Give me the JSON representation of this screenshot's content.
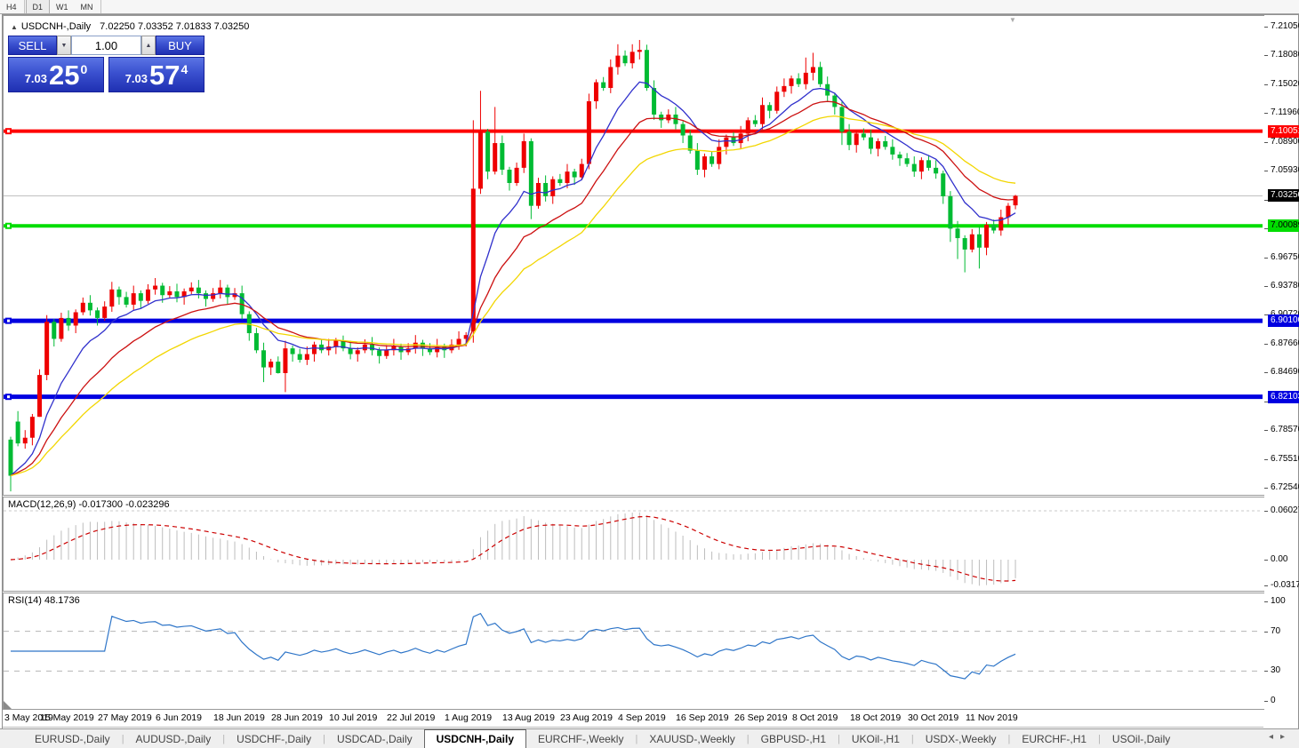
{
  "toolbar": {
    "timeframes": [
      "H4",
      "D1",
      "W1",
      "MN"
    ],
    "active": "D1"
  },
  "header": {
    "collapse_icon": "▲",
    "symbol_title": "USDCNH-,Daily",
    "ohlc_text": "7.02250 7.03352 7.01833 7.03250"
  },
  "trade_panel": {
    "sell_label": "SELL",
    "buy_label": "BUY",
    "volume": "1.00",
    "spin_down_icon": "▼",
    "spin_up_icon": "▲",
    "sell_price": {
      "small": "7.03",
      "big": "25",
      "sup": "0"
    },
    "buy_price": {
      "small": "7.03",
      "big": "57",
      "sup": "4"
    }
  },
  "price_axis": {
    "ticks": [
      "7.21050",
      "7.18080",
      "7.15020",
      "7.11960",
      "7.08900",
      "7.05930",
      "7.02870",
      "6.99810",
      "6.96750",
      "6.93780",
      "6.90720",
      "6.87660",
      "6.84690",
      "6.81630",
      "6.78570",
      "6.75510",
      "6.72540"
    ],
    "boxes": [
      {
        "text": "7.10051",
        "value": 7.10051,
        "bg": "#ff0000",
        "fg": "#ffffff"
      },
      {
        "text": "7.03250",
        "value": 7.0325,
        "bg": "#000000",
        "fg": "#ffffff"
      },
      {
        "text": "7.00089",
        "value": 7.00089,
        "bg": "#00dd00",
        "fg": "#000000"
      },
      {
        "text": "6.90100",
        "value": 6.901,
        "bg": "#0000e0",
        "fg": "#ffffff"
      },
      {
        "text": "6.82103",
        "value": 6.82103,
        "bg": "#0000e0",
        "fg": "#ffffff"
      }
    ]
  },
  "chart_data": {
    "type": "candlestick-ohlc",
    "symbol": "USDCNH",
    "timeframe": "Daily",
    "price_range": {
      "min": 6.7254,
      "max": 7.2105
    },
    "colors": {
      "bull": "#ee0000",
      "bear": "#00bb33",
      "ma_fast": "#3030cc",
      "ma_mid": "#cc1111",
      "ma_slow": "#f2d600",
      "hist": "#bdbdbd",
      "signal": "#cc0000",
      "rsi": "#2e75c8",
      "current_line": "#c0c0c0"
    },
    "hlines": [
      {
        "price": 7.10051,
        "color": "#ff0000",
        "width": 4
      },
      {
        "price": 7.00089,
        "color": "#00dd00",
        "width": 4
      },
      {
        "price": 6.901,
        "color": "#0000e0",
        "width": 5
      },
      {
        "price": 6.82103,
        "color": "#0000e0",
        "width": 5
      }
    ],
    "current_price": 7.0325,
    "ma_periods": [
      9,
      18,
      30
    ],
    "dates": [
      "2019-05-03",
      "2019-05-06",
      "2019-05-07",
      "2019-05-08",
      "2019-05-09",
      "2019-05-10",
      "2019-05-13",
      "2019-05-14",
      "2019-05-15",
      "2019-05-16",
      "2019-05-17",
      "2019-05-20",
      "2019-05-21",
      "2019-05-22",
      "2019-05-23",
      "2019-05-24",
      "2019-05-27",
      "2019-05-28",
      "2019-05-29",
      "2019-05-30",
      "2019-05-31",
      "2019-06-03",
      "2019-06-04",
      "2019-06-05",
      "2019-06-06",
      "2019-06-07",
      "2019-06-10",
      "2019-06-11",
      "2019-06-12",
      "2019-06-13",
      "2019-06-14",
      "2019-06-17",
      "2019-06-18",
      "2019-06-19",
      "2019-06-20",
      "2019-06-21",
      "2019-06-24",
      "2019-06-25",
      "2019-06-26",
      "2019-06-27",
      "2019-06-28",
      "2019-07-01",
      "2019-07-02",
      "2019-07-03",
      "2019-07-04",
      "2019-07-05",
      "2019-07-08",
      "2019-07-09",
      "2019-07-10",
      "2019-07-11",
      "2019-07-12",
      "2019-07-15",
      "2019-07-16",
      "2019-07-17",
      "2019-07-18",
      "2019-07-19",
      "2019-07-22",
      "2019-07-23",
      "2019-07-24",
      "2019-07-25",
      "2019-07-26",
      "2019-07-29",
      "2019-07-30",
      "2019-07-31",
      "2019-08-01",
      "2019-08-02",
      "2019-08-05",
      "2019-08-06",
      "2019-08-07",
      "2019-08-08",
      "2019-08-09",
      "2019-08-12",
      "2019-08-13",
      "2019-08-14",
      "2019-08-15",
      "2019-08-16",
      "2019-08-19",
      "2019-08-20",
      "2019-08-21",
      "2019-08-22",
      "2019-08-23",
      "2019-08-26",
      "2019-08-27",
      "2019-08-28",
      "2019-08-29",
      "2019-08-30",
      "2019-09-02",
      "2019-09-03",
      "2019-09-04",
      "2019-09-05",
      "2019-09-06",
      "2019-09-09",
      "2019-09-10",
      "2019-09-11",
      "2019-09-12",
      "2019-09-13",
      "2019-09-16",
      "2019-09-17",
      "2019-09-18",
      "2019-09-19",
      "2019-09-20",
      "2019-09-23",
      "2019-09-24",
      "2019-09-25",
      "2019-09-26",
      "2019-09-27",
      "2019-09-30",
      "2019-10-01",
      "2019-10-02",
      "2019-10-03",
      "2019-10-04",
      "2019-10-07",
      "2019-10-08",
      "2019-10-09",
      "2019-10-10",
      "2019-10-11",
      "2019-10-14",
      "2019-10-15",
      "2019-10-16",
      "2019-10-17",
      "2019-10-18",
      "2019-10-21",
      "2019-10-22",
      "2019-10-23",
      "2019-10-24",
      "2019-10-25",
      "2019-10-28",
      "2019-10-29",
      "2019-10-30",
      "2019-10-31",
      "2019-11-01",
      "2019-11-04",
      "2019-11-05",
      "2019-11-06",
      "2019-11-07",
      "2019-11-08",
      "2019-11-11",
      "2019-11-12",
      "2019-11-13",
      "2019-11-14"
    ],
    "close": [
      6.738,
      6.772,
      6.778,
      6.8,
      6.844,
      6.9,
      6.882,
      6.904,
      6.896,
      6.91,
      6.92,
      6.912,
      6.904,
      6.916,
      6.934,
      6.926,
      6.918,
      6.93,
      6.922,
      6.934,
      6.938,
      6.928,
      6.932,
      6.926,
      6.932,
      6.936,
      6.93,
      6.924,
      6.93,
      6.936,
      6.926,
      6.93,
      6.908,
      6.888,
      6.87,
      6.852,
      6.858,
      6.846,
      6.872,
      6.866,
      6.86,
      6.866,
      6.876,
      6.87,
      6.874,
      6.88,
      6.872,
      6.866,
      6.87,
      6.876,
      6.87,
      6.864,
      6.87,
      6.874,
      6.868,
      6.872,
      6.878,
      6.872,
      6.868,
      6.874,
      6.87,
      6.876,
      6.882,
      6.886,
      7.04,
      7.1,
      7.058,
      7.088,
      7.06,
      7.046,
      7.062,
      7.09,
      7.022,
      7.046,
      7.032,
      7.05,
      7.046,
      7.058,
      7.052,
      7.066,
      7.132,
      7.152,
      7.146,
      7.168,
      7.18,
      7.172,
      7.184,
      7.186,
      7.146,
      7.118,
      7.112,
      7.118,
      7.108,
      7.096,
      7.08,
      7.06,
      7.074,
      7.066,
      7.084,
      7.094,
      7.088,
      7.098,
      7.112,
      7.108,
      7.128,
      7.122,
      7.142,
      7.148,
      7.156,
      7.15,
      7.162,
      7.168,
      7.15,
      7.138,
      7.126,
      7.1,
      7.086,
      7.098,
      7.094,
      7.082,
      7.09,
      7.084,
      7.076,
      7.072,
      7.066,
      7.058,
      7.07,
      7.062,
      7.056,
      7.032,
      6.998,
      6.988,
      6.976,
      6.992,
      6.978,
      7.002,
      6.996,
      7.01,
      7.022,
      7.0325
    ],
    "overrides": {
      "0": {
        "o": 6.776,
        "l": 6.7215
      },
      "1": {
        "o": 6.795,
        "h": 6.806
      },
      "4": {
        "l": 6.8,
        "h": 6.85
      },
      "5": {
        "h": 6.907
      },
      "35": {
        "l": 6.8365
      },
      "37": {
        "l": 6.8455
      },
      "38": {
        "l": 6.826
      },
      "64": {
        "o": 6.89,
        "l": 6.878,
        "h": 7.112
      },
      "65": {
        "h": 7.143
      },
      "67": {
        "h": 7.126
      },
      "72": {
        "l": 7.008
      },
      "80": {
        "h": 7.14
      },
      "84": {
        "h": 7.192
      },
      "87": {
        "h": 7.1965
      },
      "110": {
        "h": 7.178
      },
      "111": {
        "h": 7.183
      },
      "115": {
        "l": 7.086
      },
      "130": {
        "l": 6.984
      },
      "131": {
        "l": 6.966
      },
      "132": {
        "l": 6.952
      },
      "134": {
        "l": 6.956
      },
      "139": {
        "o": 7.0225,
        "h": 7.03352,
        "l": 7.01833
      }
    }
  },
  "macd": {
    "label": "MACD(12,26,9)",
    "values": "-0.017300 -0.023296",
    "axis": [
      {
        "text": "0.060273",
        "value": 0.060273
      },
      {
        "text": "0.00",
        "value": 0.0
      },
      {
        "text": "-0.031725",
        "value": -0.031725
      }
    ],
    "params": {
      "fast": 12,
      "slow": 26,
      "signal": 9
    }
  },
  "rsi": {
    "label": "RSI(14)",
    "value": "48.1736",
    "period": 14,
    "axis": [
      {
        "text": "100",
        "value": 100
      },
      {
        "text": "70",
        "value": 70
      },
      {
        "text": "30",
        "value": 30
      },
      {
        "text": "0",
        "value": 0
      }
    ],
    "levels": [
      70,
      30
    ]
  },
  "date_axis": [
    {
      "i": 0,
      "t": "3 May 2019"
    },
    {
      "i": 8,
      "t": "15 May 2019"
    },
    {
      "i": 16,
      "t": "27 May 2019"
    },
    {
      "i": 24,
      "t": "6 Jun 2019"
    },
    {
      "i": 32,
      "t": "18 Jun 2019"
    },
    {
      "i": 40,
      "t": "28 Jun 2019"
    },
    {
      "i": 48,
      "t": "10 Jul 2019"
    },
    {
      "i": 56,
      "t": "22 Jul 2019"
    },
    {
      "i": 64,
      "t": "1 Aug 2019"
    },
    {
      "i": 72,
      "t": "13 Aug 2019"
    },
    {
      "i": 80,
      "t": "23 Aug 2019"
    },
    {
      "i": 88,
      "t": "4 Sep 2019"
    },
    {
      "i": 96,
      "t": "16 Sep 2019"
    },
    {
      "i": 104,
      "t": "26 Sep 2019"
    },
    {
      "i": 112,
      "t": "8 Oct 2019"
    },
    {
      "i": 120,
      "t": "18 Oct 2019"
    },
    {
      "i": 128,
      "t": "30 Oct 2019"
    },
    {
      "i": 136,
      "t": "11 Nov 2019"
    }
  ],
  "tabs": {
    "items": [
      "EURUSD-,Daily",
      "AUDUSD-,Daily",
      "USDCHF-,Daily",
      "USDCAD-,Daily",
      "USDCNH-,Daily",
      "EURCHF-,Weekly",
      "XAUUSD-,Weekly",
      "GBPUSD-,H1",
      "UKOil-,H1",
      "USDX-,Weekly",
      "EURCHF-,H1",
      "USOil-,Daily"
    ],
    "active_index": 4,
    "left_arrow": "◂",
    "right_arrow": "▸"
  },
  "markers": {
    "shift_marker": "▼"
  }
}
